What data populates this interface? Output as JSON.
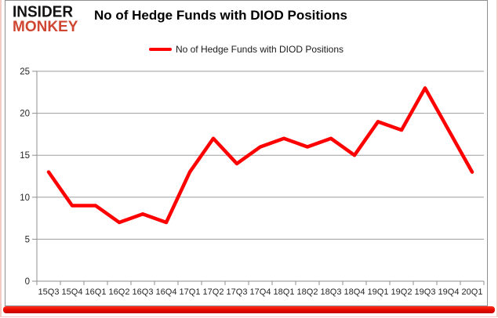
{
  "brand": {
    "line1": "INSIDER",
    "line2": "MONKEY",
    "monkey_color": "#cf4631",
    "insider_color": "#121212"
  },
  "header": {
    "title": "No of Hedge Funds with DIOD Positions"
  },
  "legend": {
    "label": "No of Hedge Funds with DIOD Positions",
    "swatch_color": "#fe0000"
  },
  "chart_data": {
    "type": "line",
    "title": "No of Hedge Funds with DIOD Positions",
    "categories": [
      "15Q3",
      "15Q4",
      "16Q1",
      "16Q2",
      "16Q3",
      "16Q4",
      "17Q1",
      "17Q2",
      "17Q3",
      "17Q4",
      "18Q1",
      "18Q2",
      "18Q3",
      "18Q4",
      "19Q1",
      "19Q2",
      "19Q3",
      "19Q4",
      "20Q1"
    ],
    "series": [
      {
        "name": "No of Hedge Funds with DIOD Positions",
        "values": [
          13,
          9,
          9,
          7,
          8,
          7,
          13,
          17,
          14,
          16,
          17,
          16,
          17,
          15,
          19,
          18,
          23,
          18,
          13
        ],
        "color": "#fe0000"
      }
    ],
    "xlabel": "",
    "ylabel": "",
    "ylim": [
      0,
      25
    ],
    "yticks": [
      0,
      5,
      10,
      15,
      20,
      25
    ],
    "grid": true,
    "legend_position": "top-center"
  },
  "colors": {
    "grid": "#9d9d9d",
    "axis": "#8f8f8f",
    "tick_label": "#262626",
    "frame_border": "#8f8f8f",
    "outer_border": "#f5cbc6",
    "bottom_bar": "#ec0d00",
    "background": "#ffffff"
  }
}
